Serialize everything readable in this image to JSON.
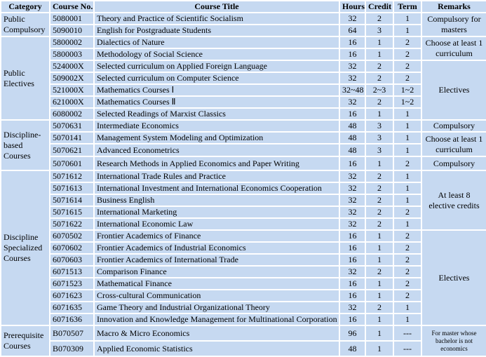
{
  "header": {
    "columns": [
      "Category",
      "Course No.",
      "Course Title",
      "Hours",
      "Credit",
      "Term",
      "Remarks"
    ]
  },
  "categories": [
    {
      "label": "Public Compulsory",
      "groups": [
        {
          "remark": "Compulsory for masters",
          "courses": [
            {
              "no": "5080001",
              "title": "Theory and Practice of Scientific Socialism",
              "hours": 32,
              "credit": 2,
              "term": 1
            },
            {
              "no": "5090010",
              "title": "English for Postgraduate Students",
              "hours": 64,
              "credit": 3,
              "term": 1
            }
          ]
        }
      ]
    },
    {
      "label": "Public Electives",
      "groups": [
        {
          "remark": "Choose at least 1 curriculum",
          "courses": [
            {
              "no": "5800002",
              "title": "Dialectics of Nature",
              "hours": 16,
              "credit": 1,
              "term": 2
            },
            {
              "no": "5800003",
              "title": "Methodology of Social Science",
              "hours": 16,
              "credit": 1,
              "term": 2
            }
          ]
        },
        {
          "remark": "Electives",
          "courses": [
            {
              "no": "524000X",
              "title": "Selected curriculum on Applied Foreign Language",
              "hours": 32,
              "credit": 2,
              "term": 2
            },
            {
              "no": "509002X",
              "title": "Selected curriculum on Computer Science",
              "hours": 32,
              "credit": 2,
              "term": 2
            },
            {
              "no": "521000X",
              "title": "Mathematics Courses Ⅰ",
              "hours": "32~48",
              "credit": "2~3",
              "term": "1~2"
            },
            {
              "no": "621000X",
              "title": "Mathematics Courses Ⅱ",
              "hours": 32,
              "credit": 2,
              "term": "1~2"
            },
            {
              "no": "6080002",
              "title": "Selected Readings of Marxist Classics",
              "hours": 16,
              "credit": 1,
              "term": 1
            }
          ]
        }
      ]
    },
    {
      "label": "Discipline-based Courses",
      "groups": [
        {
          "remark": "Compulsory",
          "courses": [
            {
              "no": "5070631",
              "title": "Intermediate Economics",
              "hours": 48,
              "credit": 3,
              "term": 1
            }
          ]
        },
        {
          "remark": "Choose at least 1 curriculum",
          "courses": [
            {
              "no": "5070141",
              "title": "Management System Modeling and Optimization",
              "hours": 48,
              "credit": 3,
              "term": 1
            },
            {
              "no": "5070621",
              "title": "Advanced Econometrics",
              "hours": 48,
              "credit": 3,
              "term": 1
            }
          ]
        },
        {
          "remark": "Compulsory",
          "courses": [
            {
              "no": "5070601",
              "title": "Research Methods in Applied Economics and Paper Writing",
              "hours": 16,
              "credit": 1,
              "term": 2
            }
          ]
        }
      ]
    },
    {
      "label": "Discipline Specialized Courses",
      "groups": [
        {
          "remark": "At least 8 elective credits",
          "courses": [
            {
              "no": "5071612",
              "title": "International Trade Rules and Practice",
              "hours": 32,
              "credit": 2,
              "term": 1
            },
            {
              "no": "5071613",
              "title": "International Investment and International Economics Cooperation",
              "hours": 32,
              "credit": 2,
              "term": 1
            },
            {
              "no": "5071614",
              "title": "Business English",
              "hours": 32,
              "credit": 2,
              "term": 1
            },
            {
              "no": "5071615",
              "title": "International Marketing",
              "hours": 32,
              "credit": 2,
              "term": 2
            },
            {
              "no": "5071622",
              "title": "International Economic Law",
              "hours": 32,
              "credit": 2,
              "term": 1
            }
          ]
        },
        {
          "remark": "Electives",
          "courses": [
            {
              "no": "6070502",
              "title": "Frontier Academics  of Finance",
              "hours": 16,
              "credit": 1,
              "term": 2
            },
            {
              "no": "6070602",
              "title": "Frontier Academics  of Industrial Economics",
              "hours": 16,
              "credit": 1,
              "term": 2
            },
            {
              "no": "6070603",
              "title": "Frontier Academics  of International Trade",
              "hours": 16,
              "credit": 1,
              "term": 2
            },
            {
              "no": "6071513",
              "title": "Comparison Finance",
              "hours": 32,
              "credit": 2,
              "term": 2
            },
            {
              "no": "6071523",
              "title": "Mathematical Finance",
              "hours": 16,
              "credit": 1,
              "term": 2
            },
            {
              "no": "6071623",
              "title": "Cross-cultural Communication",
              "hours": 16,
              "credit": 1,
              "term": 2
            },
            {
              "no": "6071635",
              "title": "Game Theory and Industrial Organizational Theory",
              "hours": 32,
              "credit": 2,
              "term": 1
            },
            {
              "no": "6071636",
              "title": "Innovation and Knowledge Management for Multinational Corporation",
              "hours": 16,
              "credit": 1,
              "term": 1
            }
          ]
        }
      ]
    },
    {
      "label": "Prerequisite Courses",
      "groups": [
        {
          "remark": "For master whose bachelor is not economics",
          "courses": [
            {
              "no": "B070507",
              "title": "Macro & Micro Economics",
              "hours": 96,
              "credit": 1,
              "term": "---"
            },
            {
              "no": "B070309",
              "title": "Applied Economic Statistics",
              "hours": 48,
              "credit": 1,
              "term": "---"
            }
          ]
        }
      ]
    }
  ]
}
